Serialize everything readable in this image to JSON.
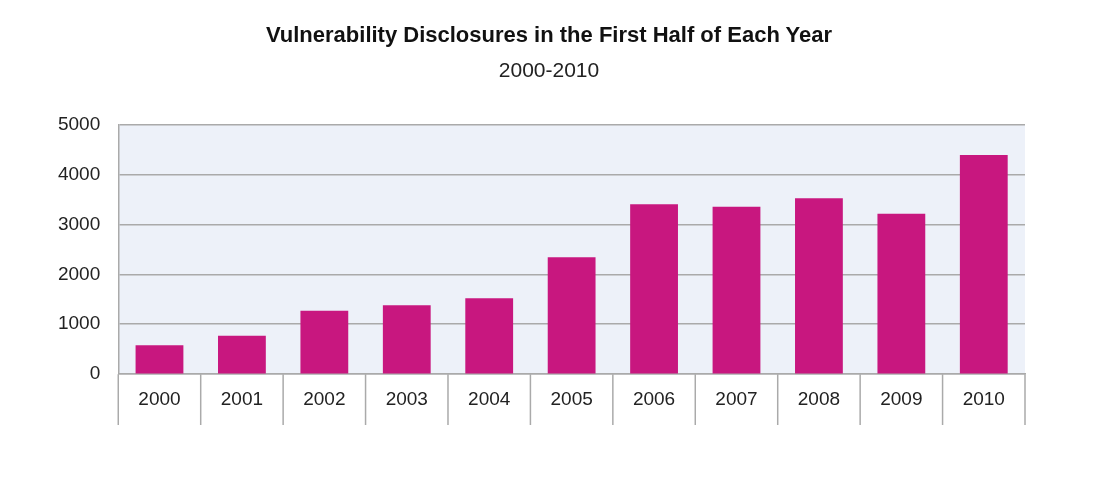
{
  "chart_data": {
    "type": "bar",
    "title": "Vulnerability Disclosures in the First Half of Each Year",
    "subtitle": "2000-2010",
    "categories": [
      "2000",
      "2001",
      "2002",
      "2003",
      "2004",
      "2005",
      "2006",
      "2007",
      "2008",
      "2009",
      "2010"
    ],
    "values": [
      580,
      770,
      1270,
      1380,
      1520,
      2340,
      3400,
      3350,
      3520,
      3210,
      4390
    ],
    "color": "#c8177f",
    "ylim": [
      0,
      5000
    ],
    "yticks": [
      0,
      1000,
      2000,
      3000,
      4000,
      5000
    ],
    "grid": "y"
  }
}
